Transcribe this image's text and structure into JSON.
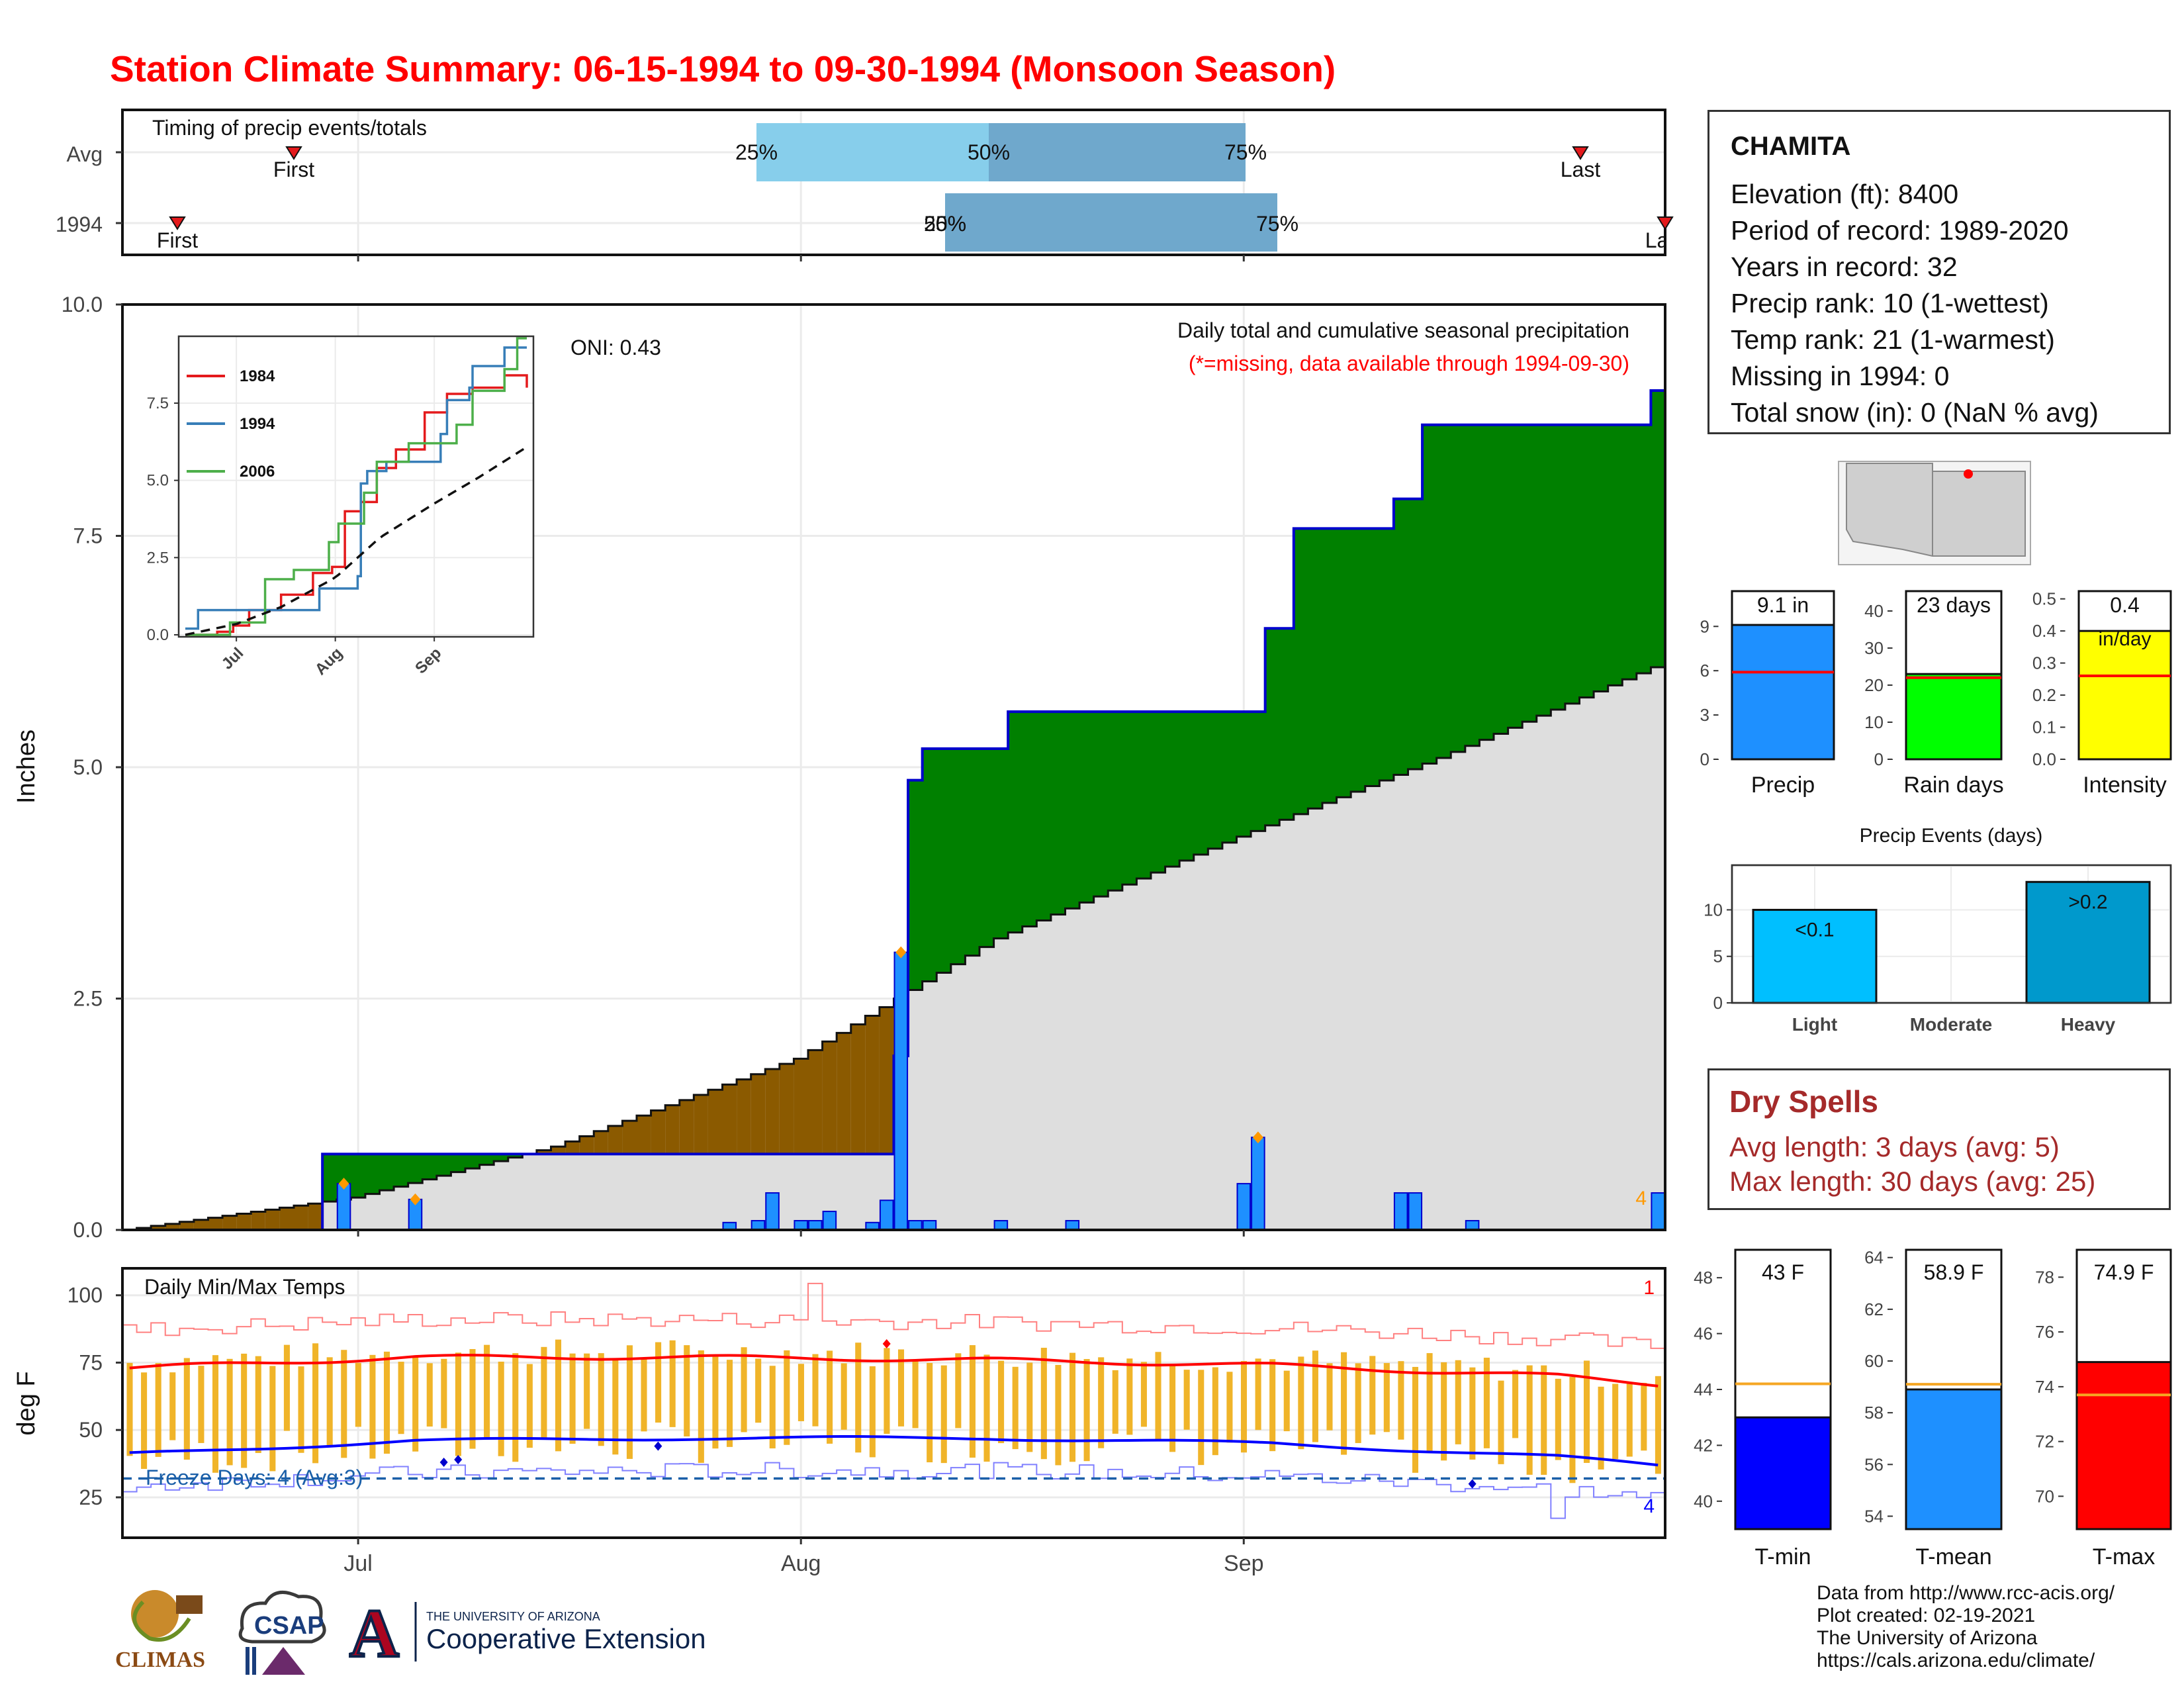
{
  "title": "Station Climate Summary: 06-15-1994 to 09-30-1994 (Monsoon Season)",
  "station": {
    "name": "CHAMITA",
    "lines": [
      "Elevation (ft): 8400",
      "Period of record: 1989-2020",
      "Years in record: 32",
      "Precip rank: 10 (1-wettest)",
      "Temp rank: 21 (1-warmest)",
      "Missing in 1994: 0",
      "Total snow (in): 0 (NaN % avg)"
    ]
  },
  "timing_panel": {
    "title": "Timing of precip events/totals",
    "rows": [
      "Avg",
      "1994"
    ],
    "avg_quartile_labels": [
      "25%",
      "50%",
      "75%"
    ],
    "y1994_quartile_labels": [
      "25%",
      "50%",
      "75%"
    ],
    "first_label": "First",
    "last_label": "Last"
  },
  "main_panel": {
    "ylabel": "Inches",
    "oni": "ONI: 0.43",
    "caption": "Daily total and cumulative seasonal precipitation",
    "missing_note": "(*=missing, data available through 1994-09-30)",
    "corner_count": "4",
    "yticks": [
      "0.0",
      "2.5",
      "5.0",
      "7.5",
      "10.0"
    ],
    "colors": {
      "above_avg": "#008000",
      "below_avg": "#8b5a00",
      "avg_fill": "#dedede",
      "bars": "#1e90ff",
      "cum_line": "#0000cd"
    }
  },
  "inset": {
    "series": [
      "1984",
      "1994",
      "2006"
    ],
    "colors": [
      "#e41a1c",
      "#377eb8",
      "#4daf4a"
    ],
    "yticks": [
      "0.0",
      "2.5",
      "5.0",
      "7.5"
    ],
    "xticks": [
      "Jul",
      "Aug",
      "Sep"
    ]
  },
  "temp_panel": {
    "title": "Daily Min/Max Temps",
    "ylabel": "deg F",
    "yticks": [
      "25",
      "50",
      "75",
      "100"
    ],
    "freeze": "Freeze Days: 4 (Avg:3)",
    "top_count": "1",
    "bottom_count": "4",
    "xticks": [
      "Jul",
      "Aug",
      "Sep"
    ]
  },
  "summary_bars": {
    "precip": {
      "label": "Precip",
      "value_text": "9.1 in",
      "value": 9.1,
      "avg": 5.9,
      "yticks": [
        "0",
        "3",
        "6",
        "9"
      ],
      "ymax": 11.3,
      "color": "#1e90ff"
    },
    "raindays": {
      "label": "Rain days",
      "value_text": "23 days",
      "value": 23,
      "avg": 22,
      "yticks": [
        "0",
        "10",
        "20",
        "30",
        "40"
      ],
      "ymax": 45,
      "color": "#00ff00"
    },
    "intensity": {
      "label": "Intensity",
      "value_text": "0.4",
      "unit": "in/day",
      "value": 0.4,
      "avg": 0.26,
      "yticks": [
        "0.0",
        "0.1",
        "0.2",
        "0.3",
        "0.4",
        "0.5"
      ],
      "ymax": 0.52,
      "color": "#ffff00"
    }
  },
  "events": {
    "title": "Precip Events (days)",
    "categories": [
      "Light",
      "Moderate",
      "Heavy"
    ],
    "bar_labels": [
      "<0.1",
      "",
      ">0.2"
    ],
    "values": [
      10,
      0,
      13
    ],
    "yticks": [
      "0",
      "5",
      "10"
    ],
    "colors": [
      "#00bfff",
      "#1e90ff",
      "#0099cc"
    ]
  },
  "dry_spells": {
    "title": "Dry Spells",
    "avg_line": "Avg length: 3 days (avg: 5)",
    "max_line": "Max length: 30 days (avg: 25)"
  },
  "temp_bars": {
    "tmin": {
      "label": "T-min",
      "value_text": "43 F",
      "value": 43,
      "avg": 44.2,
      "ymin": 39,
      "ymax": 49,
      "yticks": [
        "40",
        "42",
        "44",
        "46",
        "48"
      ],
      "color": "#0000ff"
    },
    "tmean": {
      "label": "T-mean",
      "value_text": "58.9 F",
      "value": 58.9,
      "avg": 59.1,
      "ymin": 53.5,
      "ymax": 64.3,
      "yticks": [
        "54",
        "56",
        "58",
        "60",
        "62",
        "64"
      ],
      "color": "#1e90ff"
    },
    "tmax": {
      "label": "T-max",
      "value_text": "74.9 F",
      "value": 74.9,
      "avg": 73.7,
      "ymin": 68.8,
      "ymax": 79,
      "yticks": [
        "70",
        "72",
        "74",
        "76",
        "78"
      ],
      "color": "#ff0000"
    }
  },
  "credits": [
    "Data from http://www.rcc-acis.org/",
    "Plot created: 02-19-2021",
    "The University of Arizona",
    "https://cals.arizona.edu/climate/"
  ],
  "logos": {
    "climas": "CLIMAS",
    "csap": "CSAP",
    "ua_small": "THE UNIVERSITY OF ARIZONA",
    "ua_big": "Cooperative Extension",
    "ua_mark": "A"
  },
  "chart_data": [
    {
      "type": "area",
      "title": "Daily total and cumulative seasonal precipitation",
      "xlabel": "",
      "ylabel": "Inches",
      "ylim": [
        0,
        10
      ],
      "x_range": [
        "1994-06-15",
        "1994-09-30"
      ],
      "cumulative_1994": [
        [
          "1994-06-15",
          0.0
        ],
        [
          "1994-06-29",
          0.82
        ],
        [
          "1994-07-26",
          0.82
        ],
        [
          "1994-08-08",
          1.88
        ],
        [
          "1994-08-09",
          4.86
        ],
        [
          "1994-08-10",
          5.2
        ],
        [
          "1994-08-16",
          5.6
        ],
        [
          "1994-09-01",
          5.6
        ],
        [
          "1994-09-03",
          6.5
        ],
        [
          "1994-09-05",
          7.58
        ],
        [
          "1994-09-12",
          7.9
        ],
        [
          "1994-09-14",
          8.7
        ],
        [
          "1994-09-29",
          8.7
        ],
        [
          "1994-09-30",
          9.07
        ]
      ],
      "cumulative_avg": [
        [
          "1994-06-15",
          0.0
        ],
        [
          "1994-07-01",
          0.35
        ],
        [
          "1994-07-15",
          0.9
        ],
        [
          "1994-08-01",
          1.85
        ],
        [
          "1994-08-15",
          3.15
        ],
        [
          "1994-09-01",
          4.25
        ],
        [
          "1994-09-15",
          5.1
        ],
        [
          "1994-09-30",
          6.08
        ]
      ],
      "daily_bars": [
        [
          "1994-06-30",
          0.5
        ],
        [
          "1994-07-05",
          0.33
        ],
        [
          "1994-07-27",
          0.08
        ],
        [
          "1994-07-29",
          0.1
        ],
        [
          "1994-07-30",
          0.4
        ],
        [
          "1994-08-01",
          0.1
        ],
        [
          "1994-08-02",
          0.1
        ],
        [
          "1994-08-03",
          0.2
        ],
        [
          "1994-08-06",
          0.08
        ],
        [
          "1994-08-07",
          0.32
        ],
        [
          "1994-08-08",
          3.0
        ],
        [
          "1994-08-09",
          0.1
        ],
        [
          "1994-08-10",
          0.1
        ],
        [
          "1994-08-15",
          0.1
        ],
        [
          "1994-08-20",
          0.1
        ],
        [
          "1994-09-01",
          0.5
        ],
        [
          "1994-09-02",
          1.0
        ],
        [
          "1994-09-12",
          0.4
        ],
        [
          "1994-09-13",
          0.4
        ],
        [
          "1994-09-17",
          0.1
        ],
        [
          "1994-09-30",
          0.4
        ]
      ],
      "oni": 0.43
    },
    {
      "type": "line",
      "title": "Daily Min/Max Temps",
      "ylabel": "deg F",
      "ylim": [
        10,
        110
      ],
      "series": [
        {
          "name": "avg max",
          "values": [
            [
              0,
              73
            ],
            [
              20,
              77
            ],
            [
              40,
              77
            ],
            [
              60,
              76
            ],
            [
              80,
              74
            ],
            [
              100,
              70
            ],
            [
              107,
              67
            ]
          ]
        },
        {
          "name": "avg min",
          "values": [
            [
              0,
              41
            ],
            [
              20,
              46
            ],
            [
              40,
              47
            ],
            [
              60,
              47
            ],
            [
              80,
              45
            ],
            [
              100,
              40
            ],
            [
              107,
              37
            ]
          ]
        }
      ],
      "freeze_line": 32,
      "freeze_days": 4,
      "freeze_days_avg": 3
    },
    {
      "type": "bar",
      "title": "Precip Events (days)",
      "categories": [
        "Light",
        "Moderate",
        "Heavy"
      ],
      "values": [
        10,
        0,
        13
      ]
    }
  ]
}
